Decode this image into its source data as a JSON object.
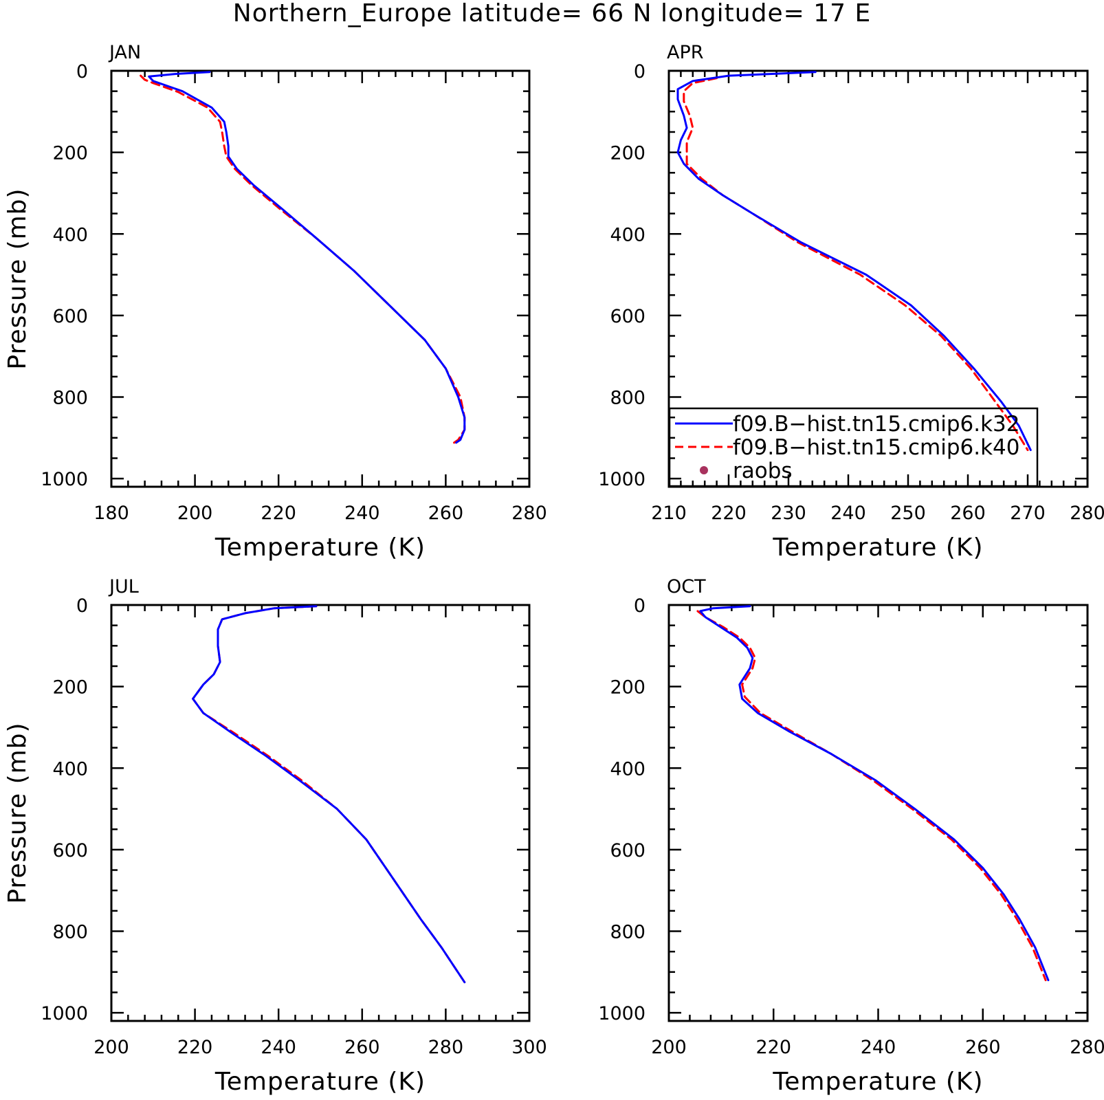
{
  "title": "Northern_Europe  latitude= 66 N longitude= 17 E",
  "legend": {
    "placement": "bottom-left",
    "panel": "APR",
    "entries": [
      {
        "label": "f09.B−hist.tn15.cmip6.k32",
        "style": "solid",
        "color": "#0000ff"
      },
      {
        "label": "f09.B−hist.tn15.cmip6.k40",
        "style": "dashed",
        "color": "#ff0000"
      },
      {
        "label": "raobs",
        "style": "marker",
        "color": "#a8325e"
      }
    ]
  },
  "chart_data": [
    {
      "type": "line",
      "panel_label": "JAN",
      "xlabel": "Temperature (K)",
      "ylabel": "Pressure (mb)",
      "xlim": [
        180,
        280
      ],
      "ylim": [
        1000,
        0
      ],
      "xticks": [
        180,
        200,
        220,
        240,
        260,
        280
      ],
      "yticks": [
        0,
        200,
        400,
        600,
        800,
        1000
      ],
      "grid": false,
      "series": [
        {
          "name": "f09.B−hist.tn15.cmip6.k32",
          "color": "#0000ff",
          "dash": "solid",
          "points": [
            [
              203.5,
              3
            ],
            [
              195,
              8
            ],
            [
              189,
              14
            ],
            [
              190,
              25
            ],
            [
              197,
              50
            ],
            [
              204,
              90
            ],
            [
              207,
              125
            ],
            [
              207.5,
              150
            ],
            [
              208,
              185
            ],
            [
              208,
              210
            ],
            [
              210,
              240
            ],
            [
              214,
              280
            ],
            [
              221,
              340
            ],
            [
              229,
              410
            ],
            [
              238,
              490
            ],
            [
              247,
              580
            ],
            [
              255,
              660
            ],
            [
              260,
              730
            ],
            [
              263,
              800
            ],
            [
              264.5,
              850
            ],
            [
              264.5,
              880
            ],
            [
              263.5,
              905
            ],
            [
              262.5,
              912
            ]
          ]
        },
        {
          "name": "f09.B−hist.tn15.cmip6.k40",
          "color": "#ff0000",
          "dash": "dashed",
          "points": [
            [
              187,
              12
            ],
            [
              188,
              22
            ],
            [
              190,
              30
            ],
            [
              196,
              52
            ],
            [
              203,
              90
            ],
            [
              206,
              125
            ],
            [
              206.5,
              150
            ],
            [
              207,
              185
            ],
            [
              207.5,
              210
            ],
            [
              209.5,
              240
            ],
            [
              213.5,
              280
            ],
            [
              220.5,
              340
            ],
            [
              229,
              410
            ],
            [
              238,
              490
            ],
            [
              247,
              580
            ],
            [
              255,
              660
            ],
            [
              260,
              730
            ],
            [
              263.5,
              800
            ],
            [
              264.5,
              850
            ],
            [
              264.5,
              880
            ],
            [
              263,
              905
            ],
            [
              262,
              912
            ]
          ]
        }
      ]
    },
    {
      "type": "line",
      "panel_label": "APR",
      "xlabel": "Temperature (K)",
      "ylabel": "",
      "xlim": [
        210,
        280
      ],
      "ylim": [
        1000,
        0
      ],
      "xticks": [
        210,
        220,
        230,
        240,
        250,
        260,
        270,
        280
      ],
      "yticks": [
        0,
        200,
        400,
        600,
        800,
        1000
      ],
      "grid": false,
      "series": [
        {
          "name": "f09.B−hist.tn15.cmip6.k32",
          "color": "#0000ff",
          "dash": "solid",
          "points": [
            [
              234.5,
              3
            ],
            [
              220,
              12
            ],
            [
              214,
              25
            ],
            [
              211.5,
              45
            ],
            [
              211.5,
              70
            ],
            [
              212.5,
              110
            ],
            [
              213,
              140
            ],
            [
              212,
              170
            ],
            [
              211.5,
              200
            ],
            [
              212.5,
              228
            ],
            [
              215,
              265
            ],
            [
              219,
              305
            ],
            [
              224,
              350
            ],
            [
              232,
              420
            ],
            [
              243,
              500
            ],
            [
              250.5,
              575
            ],
            [
              256,
              650
            ],
            [
              261,
              730
            ],
            [
              265.5,
              810
            ],
            [
              268.5,
              870
            ],
            [
              270.5,
              930
            ]
          ]
        },
        {
          "name": "f09.B−hist.tn15.cmip6.k40",
          "color": "#ff0000",
          "dash": "dashed",
          "points": [
            [
              218,
              18
            ],
            [
              214,
              30
            ],
            [
              212.5,
              50
            ],
            [
              212.5,
              75
            ],
            [
              213.5,
              110
            ],
            [
              214,
              140
            ],
            [
              213,
              175
            ],
            [
              213,
              205
            ],
            [
              213,
              228
            ],
            [
              215.5,
              265
            ],
            [
              219,
              305
            ],
            [
              224,
              350
            ],
            [
              231.5,
              420
            ],
            [
              242,
              500
            ],
            [
              249.5,
              575
            ],
            [
              255.5,
              650
            ],
            [
              260.5,
              730
            ],
            [
              264.5,
              810
            ],
            [
              267.5,
              870
            ],
            [
              270,
              930
            ]
          ]
        }
      ]
    },
    {
      "type": "line",
      "panel_label": "JUL",
      "xlabel": "Temperature (K)",
      "ylabel": "Pressure (mb)",
      "xlim": [
        200,
        300
      ],
      "ylim": [
        1000,
        0
      ],
      "xticks": [
        200,
        220,
        240,
        260,
        280,
        300
      ],
      "yticks": [
        0,
        200,
        400,
        600,
        800,
        1000
      ],
      "grid": false,
      "series": [
        {
          "name": "f09.B−hist.tn15.cmip6.k32",
          "color": "#0000ff",
          "dash": "solid",
          "points": [
            [
              249,
              3
            ],
            [
              239,
              8
            ],
            [
              232,
              20
            ],
            [
              226.5,
              35
            ],
            [
              225.5,
              60
            ],
            [
              225.5,
              100
            ],
            [
              226,
              140
            ],
            [
              224.5,
              170
            ],
            [
              222,
              195
            ],
            [
              219.5,
              230
            ],
            [
              222,
              265
            ],
            [
              229,
              315
            ],
            [
              237,
              370
            ],
            [
              245,
              430
            ],
            [
              254,
              500
            ],
            [
              261,
              575
            ],
            [
              266,
              650
            ],
            [
              270,
              710
            ],
            [
              274,
              770
            ],
            [
              279,
              840
            ],
            [
              284.5,
              925
            ]
          ]
        },
        {
          "name": "f09.B−hist.tn15.cmip6.k40",
          "color": "#ff0000",
          "dash": "dashed",
          "points": [
            [
              249,
              3
            ],
            [
              239,
              8
            ],
            [
              232,
              20
            ],
            [
              226.5,
              35
            ],
            [
              225.5,
              60
            ],
            [
              225.5,
              100
            ],
            [
              226,
              140
            ],
            [
              224.5,
              170
            ],
            [
              222,
              195
            ],
            [
              219.5,
              230
            ],
            [
              222,
              265
            ],
            [
              229.5,
              315
            ],
            [
              237.5,
              370
            ],
            [
              245.5,
              430
            ],
            [
              254,
              500
            ],
            [
              261,
              575
            ],
            [
              266,
              650
            ],
            [
              270,
              710
            ],
            [
              274,
              770
            ],
            [
              279,
              840
            ],
            [
              284.5,
              925
            ]
          ]
        }
      ]
    },
    {
      "type": "line",
      "panel_label": "OCT",
      "xlabel": "Temperature (K)",
      "ylabel": "",
      "xlim": [
        200,
        280
      ],
      "ylim": [
        1000,
        0
      ],
      "xticks": [
        200,
        220,
        240,
        260,
        280
      ],
      "yticks": [
        0,
        200,
        400,
        600,
        800,
        1000
      ],
      "grid": false,
      "series": [
        {
          "name": "f09.B−hist.tn15.cmip6.k32",
          "color": "#0000ff",
          "dash": "solid",
          "points": [
            [
              215.5,
              3
            ],
            [
              208.5,
              8
            ],
            [
              206,
              15
            ],
            [
              207,
              30
            ],
            [
              210,
              55
            ],
            [
              213,
              80
            ],
            [
              215,
              105
            ],
            [
              216,
              130
            ],
            [
              215.5,
              155
            ],
            [
              214.5,
              175
            ],
            [
              213.5,
              195
            ],
            [
              214,
              230
            ],
            [
              217,
              265
            ],
            [
              223,
              310
            ],
            [
              231,
              365
            ],
            [
              239.5,
              430
            ],
            [
              247,
              500
            ],
            [
              254.5,
              575
            ],
            [
              260,
              645
            ],
            [
              264,
              710
            ],
            [
              267,
              770
            ],
            [
              270,
              840
            ],
            [
              272.5,
              920
            ]
          ]
        },
        {
          "name": "f09.B−hist.tn15.cmip6.k40",
          "color": "#ff0000",
          "dash": "dashed",
          "points": [
            [
              205.5,
              15
            ],
            [
              207,
              30
            ],
            [
              210.5,
              55
            ],
            [
              213.5,
              80
            ],
            [
              215.5,
              105
            ],
            [
              216.5,
              130
            ],
            [
              216,
              155
            ],
            [
              215,
              175
            ],
            [
              214,
              195
            ],
            [
              214.5,
              225
            ],
            [
              217.5,
              265
            ],
            [
              223.5,
              310
            ],
            [
              231,
              365
            ],
            [
              239,
              430
            ],
            [
              246.5,
              500
            ],
            [
              254,
              575
            ],
            [
              259.5,
              645
            ],
            [
              263.5,
              710
            ],
            [
              266.5,
              770
            ],
            [
              269.5,
              840
            ],
            [
              272,
              920
            ]
          ]
        }
      ]
    }
  ]
}
